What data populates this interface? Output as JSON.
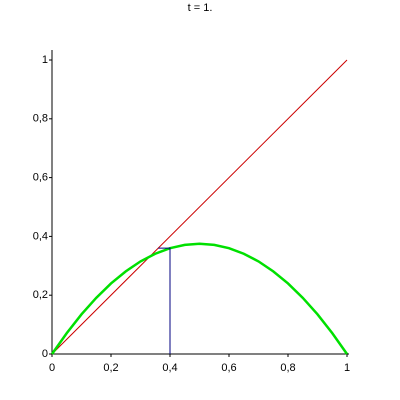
{
  "chart_data": {
    "type": "line",
    "title": "t = 1.",
    "series": [
      {
        "color": "#cc0000",
        "width": 1,
        "x": [
          0,
          1
        ],
        "values": [
          0,
          1
        ]
      },
      {
        "color": "#00e000",
        "width": 2.5,
        "x": [
          0,
          0.05,
          0.1,
          0.15,
          0.2,
          0.25,
          0.3,
          0.35,
          0.4,
          0.45,
          0.5,
          0.55,
          0.6,
          0.65,
          0.7,
          0.75,
          0.8,
          0.85,
          0.9,
          0.95,
          1
        ],
        "values": [
          0,
          0.071,
          0.135,
          0.191,
          0.24,
          0.281,
          0.315,
          0.341,
          0.36,
          0.371,
          0.375,
          0.371,
          0.36,
          0.341,
          0.315,
          0.281,
          0.24,
          0.191,
          0.135,
          0.071,
          0
        ]
      },
      {
        "color": "#000080",
        "width": 1,
        "x": [
          0.4,
          0.4,
          0.36
        ],
        "values": [
          0,
          0.36,
          0.36
        ]
      }
    ],
    "xlim": [
      0,
      1
    ],
    "ylim": [
      0,
      1
    ],
    "xticks": [
      0,
      {
        "value": 0.2,
        "label": "0,2"
      },
      {
        "value": 0.4,
        "label": "0,4"
      },
      {
        "value": 0.6,
        "label": "0,6"
      },
      {
        "value": 0.8,
        "label": "0,8"
      },
      1
    ],
    "yticks": [
      0,
      {
        "value": 0.2,
        "label": "0,2"
      },
      {
        "value": 0.4,
        "label": "0,4"
      },
      {
        "value": 0.6,
        "label": "0,6"
      },
      {
        "value": 0.8,
        "label": "0,8"
      },
      1
    ]
  }
}
